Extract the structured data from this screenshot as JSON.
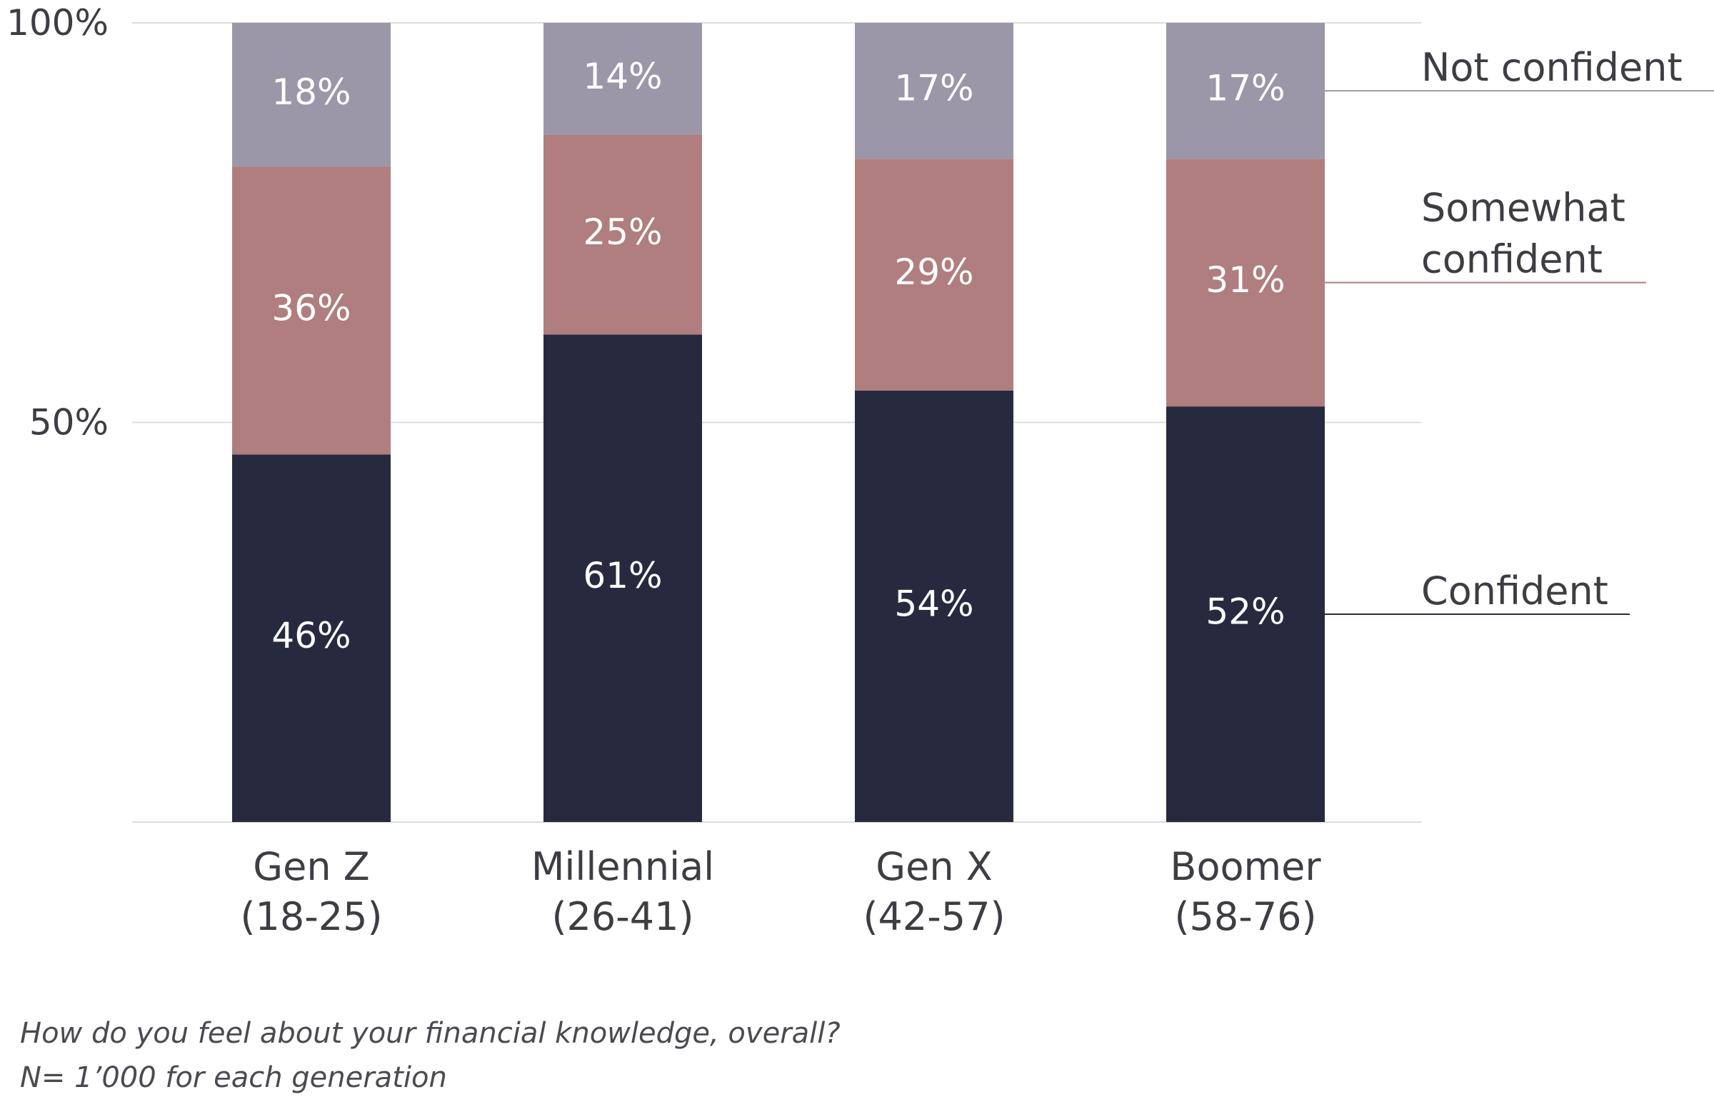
{
  "chart_data": {
    "type": "bar",
    "stacked": true,
    "categories": [
      "Gen Z (18-25)",
      "Millennial (26-41)",
      "Gen X (42-57)",
      "Boomer (58-76)"
    ],
    "category_lines": [
      [
        "Gen Z",
        "(18-25)"
      ],
      [
        "Millennial",
        "(26-41)"
      ],
      [
        "Gen X",
        "(42-57)"
      ],
      [
        "Boomer",
        "(58-76)"
      ]
    ],
    "series": [
      {
        "name": "Confident",
        "label_lines": [
          "Confident"
        ],
        "values": [
          46,
          61,
          54,
          52
        ],
        "labels": [
          "46%",
          "61%",
          "54%",
          "52%"
        ],
        "color": "#272a3f"
      },
      {
        "name": "Somewhat confident",
        "label_lines": [
          "Somewhat",
          "confident"
        ],
        "values": [
          36,
          25,
          29,
          31
        ],
        "labels": [
          "36%",
          "25%",
          "29%",
          "31%"
        ],
        "color": "#b07e7e"
      },
      {
        "name": "Not confident",
        "label_lines": [
          "Not confident"
        ],
        "values": [
          18,
          14,
          17,
          17
        ],
        "labels": [
          "18%",
          "14%",
          "17%",
          "17%"
        ],
        "color": "#9b97a8"
      }
    ],
    "yticks": [
      {
        "value": 50,
        "label": "50%"
      },
      {
        "value": 100,
        "label": "100%"
      }
    ],
    "ylim": [
      0,
      100
    ],
    "grid": true,
    "legend_placement": "right",
    "xlabel": "",
    "ylabel": ""
  },
  "notes": [
    "How do you feel about your financial knowledge, overall?",
    "N= 1’000 for each generation"
  ],
  "colors": {
    "grid": "#dcdce0",
    "text": "#3d3d44"
  }
}
